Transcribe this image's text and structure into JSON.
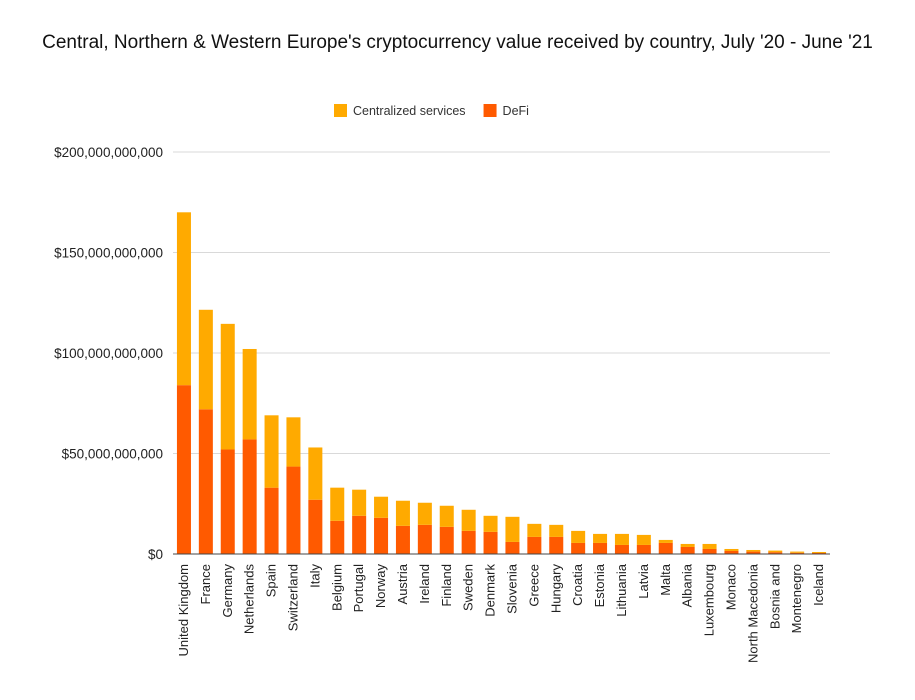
{
  "chart_data": {
    "type": "bar",
    "stacked": true,
    "title": "Central, Northern & Western Europe's cryptocurrency value received by country, July '20 - June '21",
    "xlabel": "",
    "ylabel": "",
    "ylim": [
      0,
      200000000000
    ],
    "yticks": [
      {
        "value": 0,
        "label": "$0"
      },
      {
        "value": 50000000000,
        "label": "$50,000,000,000"
      },
      {
        "value": 100000000000,
        "label": "$100,000,000,000"
      },
      {
        "value": 150000000000,
        "label": "$150,000,000,000"
      },
      {
        "value": 200000000000,
        "label": "$200,000,000,000"
      }
    ],
    "grid": true,
    "legend_position": "top",
    "categories": [
      "United Kingdom",
      "France",
      "Germany",
      "Netherlands",
      "Spain",
      "Switzerland",
      "Italy",
      "Belgium",
      "Portugal",
      "Norway",
      "Austria",
      "Ireland",
      "Finland",
      "Sweden",
      "Denmark",
      "Slovenia",
      "Greece",
      "Hungary",
      "Croatia",
      "Estonia",
      "Lithuania",
      "Latvia",
      "Malta",
      "Albania",
      "Luxembourg",
      "Monaco",
      "North Macedonia",
      "Bosnia and",
      "Montenegro",
      "Iceland"
    ],
    "series": [
      {
        "name": "DeFi",
        "color": "#ff5a00",
        "values": [
          84000000000,
          72000000000,
          52000000000,
          57000000000,
          33000000000,
          43500000000,
          27000000000,
          16500000000,
          19000000000,
          18000000000,
          14000000000,
          14500000000,
          13500000000,
          11500000000,
          11000000000,
          6000000000,
          8500000000,
          8500000000,
          5500000000,
          5500000000,
          4500000000,
          4500000000,
          5500000000,
          3500000000,
          2500000000,
          1500000000,
          1200000000,
          900000000,
          600000000,
          500000000
        ]
      },
      {
        "name": "Centralized services",
        "color": "#ffaa00",
        "values": [
          86000000000,
          49500000000,
          62500000000,
          45000000000,
          36000000000,
          24500000000,
          26000000000,
          16500000000,
          13000000000,
          10500000000,
          12500000000,
          11000000000,
          10500000000,
          10500000000,
          8000000000,
          12500000000,
          6500000000,
          6000000000,
          6000000000,
          4500000000,
          5500000000,
          5000000000,
          1500000000,
          1500000000,
          2500000000,
          1000000000,
          800000000,
          800000000,
          600000000,
          500000000
        ]
      }
    ]
  }
}
